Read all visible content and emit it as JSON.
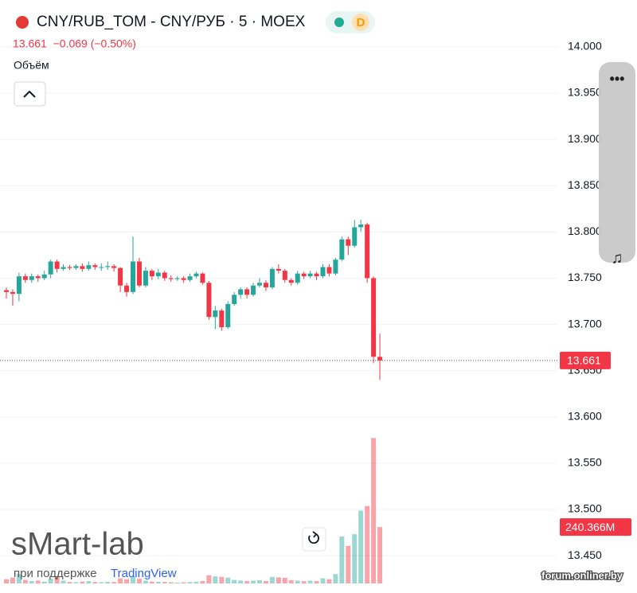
{
  "chart_data": {
    "type": "candlestick",
    "title": "CNY/RUB_TOM - CNY/РУБ · 5 · MOEX",
    "badge": "D",
    "quote": "13.661  −0.069 (−0.50%)",
    "volume_label": "Объём",
    "watermark": "sMart-lab",
    "support_text": "при поддержке",
    "support_brand": "TradingView",
    "source": "forum.onliner.by",
    "up_color": "#26a69a",
    "down_color": "#f23645",
    "grid": true,
    "ylim": [
      13.42,
      14.03
    ],
    "yticks": [
      {
        "value": 14.0,
        "label": "14.000"
      },
      {
        "value": 13.95,
        "label": "13.950"
      },
      {
        "value": 13.9,
        "label": "13.900"
      },
      {
        "value": 13.85,
        "label": "13.850"
      },
      {
        "value": 13.8,
        "label": "13.800"
      },
      {
        "value": 13.75,
        "label": "13.750"
      },
      {
        "value": 13.7,
        "label": "13.700"
      },
      {
        "value": 13.65,
        "label": "13.650"
      },
      {
        "value": 13.6,
        "label": "13.600"
      },
      {
        "value": 13.55,
        "label": "13.550"
      },
      {
        "value": 13.5,
        "label": "13.500"
      },
      {
        "value": 13.45,
        "label": "13.450"
      }
    ],
    "last_price": 13.661,
    "last_volume": {
      "value": 240.366,
      "label": "240.366M"
    },
    "volume_ylim": [
      0,
      950
    ],
    "open": [
      13.737,
      13.735,
      13.733,
      13.752,
      13.748,
      13.752,
      13.75,
      13.754,
      13.768,
      13.76,
      13.762,
      13.761,
      13.763,
      13.76,
      13.764,
      13.762,
      13.762,
      13.763,
      13.761,
      13.742,
      13.735,
      13.768,
      13.742,
      13.758,
      13.752,
      13.756,
      13.75,
      13.749,
      13.75,
      13.748,
      13.752,
      13.755,
      13.745,
      13.708,
      13.715,
      13.697,
      13.722,
      13.732,
      13.738,
      13.732,
      13.742,
      13.745,
      13.74,
      13.76,
      13.758,
      13.748,
      13.745,
      13.755,
      13.752,
      13.755,
      13.752,
      13.762,
      13.755,
      13.77,
      13.792,
      13.785,
      13.805,
      13.808,
      13.75,
      13.665
    ],
    "high": [
      13.74,
      13.738,
      13.756,
      13.755,
      13.755,
      13.754,
      13.758,
      13.77,
      13.77,
      13.765,
      13.764,
      13.765,
      13.766,
      13.768,
      13.766,
      13.766,
      13.768,
      13.765,
      13.762,
      13.745,
      13.795,
      13.772,
      13.762,
      13.76,
      13.76,
      13.758,
      13.753,
      13.752,
      13.752,
      13.755,
      13.757,
      13.756,
      13.747,
      13.72,
      13.717,
      13.725,
      13.735,
      13.74,
      13.74,
      13.745,
      13.75,
      13.748,
      13.762,
      13.765,
      13.76,
      13.75,
      13.758,
      13.757,
      13.758,
      13.757,
      13.765,
      13.765,
      13.772,
      13.795,
      13.795,
      13.813,
      13.813,
      13.81,
      13.752,
      13.69
    ],
    "low": [
      13.728,
      13.72,
      13.725,
      13.745,
      13.745,
      13.746,
      13.748,
      13.75,
      13.756,
      13.758,
      13.759,
      13.759,
      13.757,
      13.758,
      13.759,
      13.758,
      13.759,
      13.757,
      13.735,
      13.73,
      13.733,
      13.74,
      13.74,
      13.748,
      13.749,
      13.747,
      13.746,
      13.747,
      13.745,
      13.746,
      13.75,
      13.743,
      13.705,
      13.695,
      13.693,
      13.695,
      13.72,
      13.728,
      13.728,
      13.73,
      13.74,
      13.736,
      13.738,
      13.755,
      13.745,
      13.742,
      13.743,
      13.749,
      13.75,
      13.748,
      13.75,
      13.752,
      13.753,
      13.768,
      13.775,
      13.783,
      13.8,
      13.745,
      13.658,
      13.64
    ],
    "close": [
      13.735,
      13.733,
      13.752,
      13.748,
      13.752,
      13.75,
      13.754,
      13.768,
      13.76,
      13.762,
      13.761,
      13.763,
      13.76,
      13.764,
      13.762,
      13.762,
      13.763,
      13.761,
      13.742,
      13.735,
      13.768,
      13.742,
      13.758,
      13.752,
      13.756,
      13.75,
      13.749,
      13.75,
      13.748,
      13.752,
      13.755,
      13.745,
      13.708,
      13.715,
      13.697,
      13.722,
      13.732,
      13.738,
      13.732,
      13.742,
      13.745,
      13.74,
      13.76,
      13.758,
      13.748,
      13.745,
      13.755,
      13.752,
      13.755,
      13.752,
      13.762,
      13.755,
      13.77,
      13.792,
      13.785,
      13.805,
      13.808,
      13.75,
      13.665,
      13.661
    ],
    "volume": [
      18,
      25,
      40,
      15,
      10,
      12,
      8,
      20,
      30,
      12,
      6,
      5,
      8,
      10,
      6,
      5,
      7,
      6,
      22,
      18,
      30,
      20,
      12,
      8,
      7,
      6,
      5,
      4,
      5,
      6,
      7,
      10,
      35,
      30,
      28,
      25,
      15,
      12,
      10,
      12,
      14,
      10,
      28,
      26,
      24,
      14,
      12,
      10,
      12,
      10,
      22,
      18,
      40,
      200,
      160,
      210,
      310,
      330,
      620,
      240.366
    ]
  }
}
